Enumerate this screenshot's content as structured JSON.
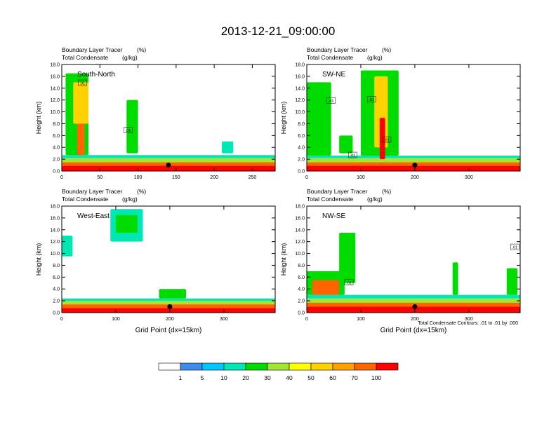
{
  "main_title": "2013-12-21_09:00:00",
  "chart_data": [
    {
      "type": "heatmap",
      "label": "South-North",
      "left_title_1": "Boundary Layer Tracer",
      "right_title_1": "(%)",
      "left_title_2": "Total Condensate",
      "right_title_2": "(g/kg)",
      "ylabel": "Height (km)",
      "xlabel": "",
      "xlim": [
        0,
        280
      ],
      "ylim": [
        0,
        18
      ],
      "xticks": [
        0,
        50,
        100,
        150,
        200,
        250
      ],
      "yticks": [
        "0.0",
        "2.0",
        "4.0",
        "6.0",
        "8.0",
        "10.0",
        "12.0",
        "14.0",
        "16.0",
        "18.0"
      ],
      "marker": {
        "x": 140,
        "y": 1.0
      },
      "contour_labels": [
        {
          "x": 27,
          "y": 14.8,
          "text": ".01"
        },
        {
          "x": 87,
          "y": 6.8,
          "text": ".01"
        }
      ],
      "features": [
        {
          "x": [
            0,
            280
          ],
          "y": [
            0,
            0.9
          ],
          "level": 100
        },
        {
          "x": [
            0,
            280
          ],
          "y": [
            0.9,
            1.5
          ],
          "level": 70
        },
        {
          "x": [
            0,
            280
          ],
          "y": [
            1.5,
            2.2
          ],
          "level": 30
        },
        {
          "x": [
            0,
            280
          ],
          "y": [
            2.2,
            2.7
          ],
          "level": 10
        },
        {
          "x": [
            5,
            35
          ],
          "y": [
            2.7,
            16.5
          ],
          "level": 20
        },
        {
          "x": [
            20,
            30
          ],
          "y": [
            2.7,
            8
          ],
          "level": 70
        },
        {
          "x": [
            15,
            35
          ],
          "y": [
            8,
            15
          ],
          "level": 50
        },
        {
          "x": [
            85,
            100
          ],
          "y": [
            3,
            12
          ],
          "level": 20
        },
        {
          "x": [
            210,
            225
          ],
          "y": [
            3,
            5
          ],
          "level": 10
        }
      ]
    },
    {
      "type": "heatmap",
      "label": "SW-NE",
      "left_title_1": "Boundary Layer Tracer",
      "right_title_1": "(%)",
      "left_title_2": "Total Condensate",
      "right_title_2": "(g/kg)",
      "ylabel": "Height (km)",
      "xlabel": "",
      "xlim": [
        0,
        395
      ],
      "ylim": [
        0,
        18
      ],
      "xticks": [
        0,
        100,
        200,
        300
      ],
      "yticks": [
        "0.0",
        "2.0",
        "4.0",
        "6.0",
        "8.0",
        "10.0",
        "12.0",
        "14.0",
        "16.0",
        "18.0"
      ],
      "marker": {
        "x": 200,
        "y": 1.0
      },
      "contour_labels": [
        {
          "x": 45,
          "y": 11.8,
          "text": ".01"
        },
        {
          "x": 120,
          "y": 12.0,
          "text": ".01"
        },
        {
          "x": 148,
          "y": 5.2,
          "text": ".01"
        },
        {
          "x": 85,
          "y": 2.6,
          "text": ".01"
        }
      ],
      "features": [
        {
          "x": [
            0,
            395
          ],
          "y": [
            0,
            0.9
          ],
          "level": 100
        },
        {
          "x": [
            0,
            395
          ],
          "y": [
            0.9,
            1.5
          ],
          "level": 70
        },
        {
          "x": [
            0,
            395
          ],
          "y": [
            1.5,
            2.2
          ],
          "level": 30
        },
        {
          "x": [
            0,
            395
          ],
          "y": [
            2.2,
            2.6
          ],
          "level": 10
        },
        {
          "x": [
            0,
            45
          ],
          "y": [
            2.6,
            15
          ],
          "level": 20
        },
        {
          "x": [
            100,
            170
          ],
          "y": [
            2.6,
            17
          ],
          "level": 20
        },
        {
          "x": [
            125,
            150
          ],
          "y": [
            4,
            16
          ],
          "level": 50
        },
        {
          "x": [
            135,
            145
          ],
          "y": [
            2,
            9
          ],
          "level": 100
        },
        {
          "x": [
            60,
            85
          ],
          "y": [
            3,
            6
          ],
          "level": 20
        }
      ]
    },
    {
      "type": "heatmap",
      "label": "West-East",
      "left_title_1": "Boundary Layer Tracer",
      "right_title_1": "(%)",
      "left_title_2": "Total Condensate",
      "right_title_2": "(g/kg)",
      "ylabel": "Height (km)",
      "xlabel": "Grid Point (dx=15km)",
      "xlim": [
        0,
        395
      ],
      "ylim": [
        0,
        18
      ],
      "xticks": [
        0,
        100,
        200,
        300
      ],
      "yticks": [
        "0.0",
        "2.0",
        "4.0",
        "6.0",
        "8.0",
        "10.0",
        "12.0",
        "14.0",
        "16.0",
        "18.0"
      ],
      "marker": {
        "x": 200,
        "y": 1.0
      },
      "contour_labels": [],
      "features": [
        {
          "x": [
            0,
            395
          ],
          "y": [
            0,
            0.8
          ],
          "level": 100
        },
        {
          "x": [
            0,
            395
          ],
          "y": [
            0.8,
            1.4
          ],
          "level": 70
        },
        {
          "x": [
            0,
            395
          ],
          "y": [
            1.4,
            2.0
          ],
          "level": 30
        },
        {
          "x": [
            0,
            395
          ],
          "y": [
            2.0,
            2.4
          ],
          "level": 10
        },
        {
          "x": [
            0,
            20
          ],
          "y": [
            9.5,
            13
          ],
          "level": 10
        },
        {
          "x": [
            90,
            150
          ],
          "y": [
            12,
            17.5
          ],
          "level": 10
        },
        {
          "x": [
            100,
            140
          ],
          "y": [
            13.5,
            16.5
          ],
          "level": 20
        },
        {
          "x": [
            180,
            230
          ],
          "y": [
            2.4,
            4
          ],
          "level": 20
        }
      ]
    },
    {
      "type": "heatmap",
      "label": "NW-SE",
      "left_title_1": "Boundary Layer Tracer",
      "right_title_1": "(%)",
      "left_title_2": "Total Condensate",
      "right_title_2": "(g/kg)",
      "ylabel": "Height (km)",
      "xlabel": "Grid Point (dx=15km)",
      "xlim": [
        0,
        395
      ],
      "ylim": [
        0,
        18
      ],
      "xticks": [
        0,
        100,
        200,
        300
      ],
      "yticks": [
        "0.0",
        "2.0",
        "4.0",
        "6.0",
        "8.0",
        "10.0",
        "12.0",
        "14.0",
        "16.0",
        "18.0"
      ],
      "marker": {
        "x": 200,
        "y": 1.0
      },
      "contour_labels": [
        {
          "x": 78,
          "y": 5.0,
          "text": ".01"
        },
        {
          "x": 385,
          "y": 11.0,
          "text": ".01"
        }
      ],
      "features": [
        {
          "x": [
            0,
            395
          ],
          "y": [
            0,
            1.0
          ],
          "level": 100
        },
        {
          "x": [
            0,
            395
          ],
          "y": [
            1.0,
            1.7
          ],
          "level": 70
        },
        {
          "x": [
            0,
            395
          ],
          "y": [
            1.7,
            2.4
          ],
          "level": 30
        },
        {
          "x": [
            0,
            395
          ],
          "y": [
            2.4,
            3.0
          ],
          "level": 10
        },
        {
          "x": [
            0,
            70
          ],
          "y": [
            3,
            7
          ],
          "level": 20
        },
        {
          "x": [
            10,
            60
          ],
          "y": [
            3,
            5.5
          ],
          "level": 70
        },
        {
          "x": [
            60,
            90
          ],
          "y": [
            5,
            13.5
          ],
          "level": 20
        },
        {
          "x": [
            270,
            280
          ],
          "y": [
            3,
            8.5
          ],
          "level": 20
        },
        {
          "x": [
            370,
            390
          ],
          "y": [
            3,
            7.5
          ],
          "level": 20
        }
      ],
      "footnote": "Total Condensate Contours: .01 to .01 by .000"
    }
  ],
  "colorbar": {
    "levels": [
      "1",
      "5",
      "10",
      "20",
      "30",
      "40",
      "50",
      "60",
      "70",
      "100"
    ],
    "colors": [
      "#ffffff",
      "#3c8cf0",
      "#00c8ff",
      "#00e6b4",
      "#00dc00",
      "#a0e632",
      "#ffff00",
      "#ffd200",
      "#ffa000",
      "#ff6400",
      "#ff0000"
    ]
  }
}
